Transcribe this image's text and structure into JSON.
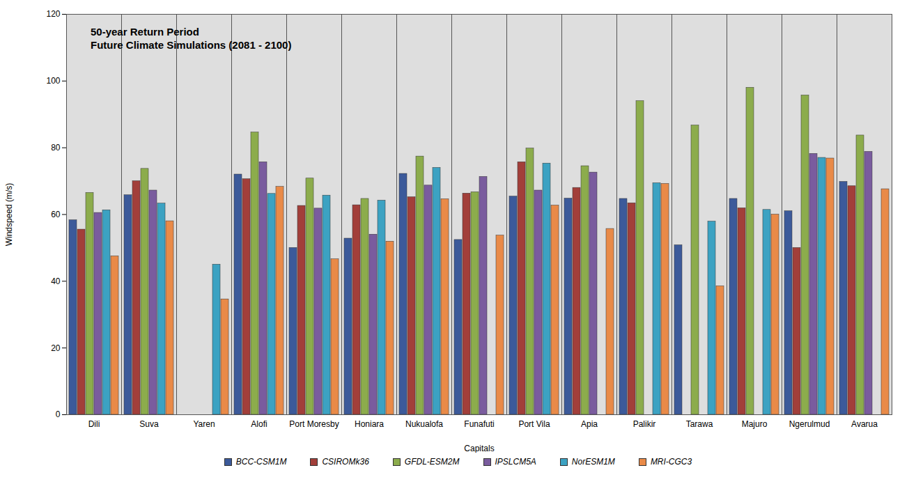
{
  "chart_data": {
    "type": "bar",
    "title": "50-year Return Period",
    "subtitle": "Future Climate Simulations (2081 - 2100)",
    "x_label": "Capitals",
    "y_label": "Windspeed (m/s)",
    "categories": [
      "Dili",
      "Suva",
      "Yaren",
      "Alofi",
      "Port Moresby",
      "Honiara",
      "Nukualofa",
      "Funafuti",
      "Port Vila",
      "Apia",
      "Palikir",
      "Tarawa",
      "Majuro",
      "Ngerulmud",
      "Avarua"
    ],
    "series": [
      {
        "name": "BCC-CSM1M",
        "color": "#3c5a9a",
        "values": [
          58.3,
          65.8,
          null,
          72.0,
          50.0,
          52.8,
          72.2,
          52.4,
          65.4,
          64.8,
          64.7,
          50.8,
          64.7,
          61.0,
          69.8
        ]
      },
      {
        "name": "CSIROMk36",
        "color": "#a23f3a",
        "values": [
          55.5,
          70.0,
          null,
          70.6,
          62.6,
          62.8,
          65.2,
          66.3,
          75.7,
          68.0,
          63.4,
          null,
          61.9,
          50.0,
          68.5
        ]
      },
      {
        "name": "GFDL-ESM2M",
        "color": "#8cac4c",
        "values": [
          66.5,
          73.7,
          null,
          84.6,
          70.8,
          64.7,
          77.4,
          66.7,
          79.8,
          74.5,
          94.0,
          86.7,
          98.0,
          95.7,
          83.7
        ]
      },
      {
        "name": "IPSLCM5A",
        "color": "#7a5c9e",
        "values": [
          60.5,
          67.2,
          null,
          75.7,
          61.8,
          54.0,
          68.7,
          71.3,
          67.2,
          72.6,
          null,
          null,
          null,
          78.2,
          78.8
        ]
      },
      {
        "name": "NorESM1M",
        "color": "#3ca2c2",
        "values": [
          61.3,
          63.3,
          45.0,
          66.2,
          65.7,
          64.2,
          74.0,
          null,
          75.3,
          null,
          69.4,
          57.9,
          61.4,
          77.0,
          null
        ]
      },
      {
        "name": "MRI-CGC3",
        "color": "#e98a48",
        "values": [
          47.5,
          58.0,
          34.6,
          68.3,
          46.6,
          51.9,
          64.6,
          53.7,
          62.7,
          55.7,
          69.2,
          38.5,
          60.0,
          76.8,
          67.6
        ]
      }
    ],
    "ylim": [
      0,
      120
    ],
    "yticks": [
      0,
      20,
      40,
      60,
      80,
      100,
      120
    ],
    "grid": false,
    "legend": "bottom"
  }
}
